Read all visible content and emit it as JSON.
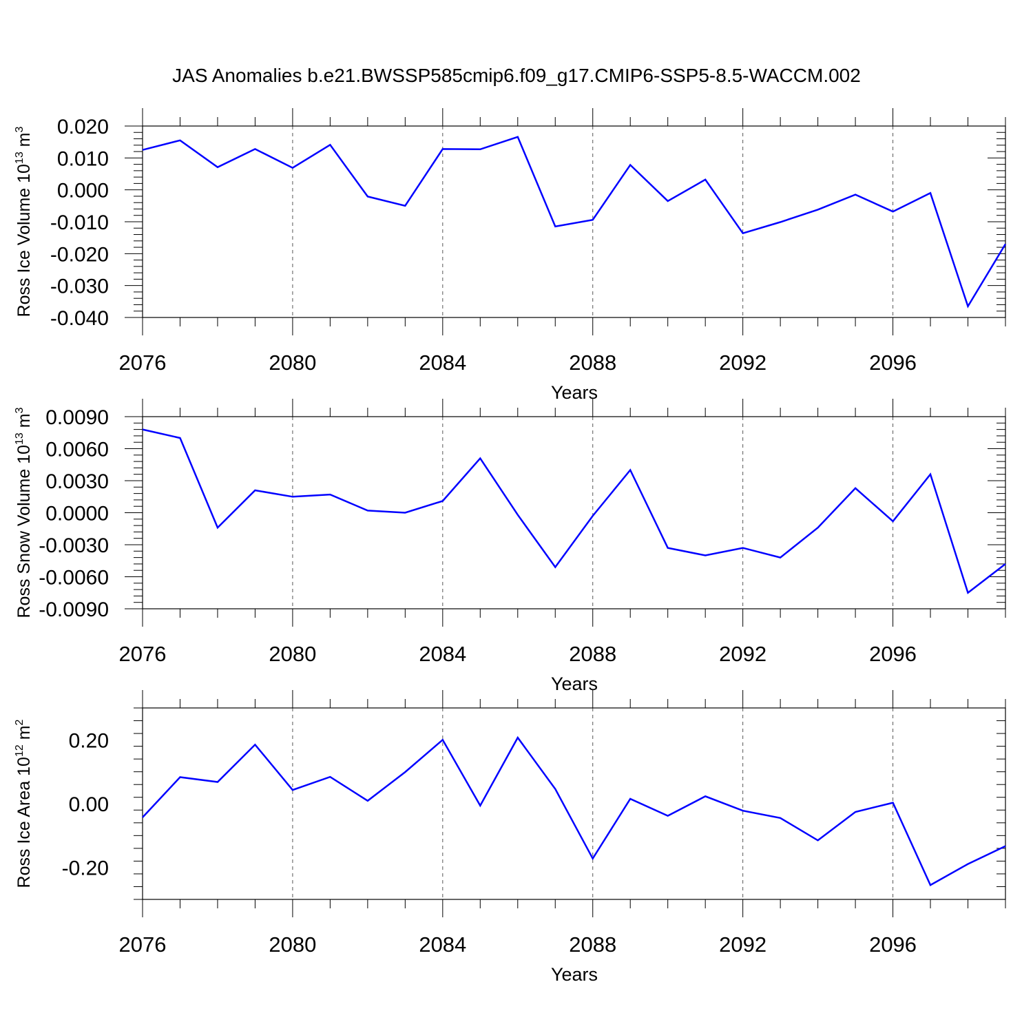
{
  "title": "JAS Anomalies b.e21.BWSSP585cmip6.f09_g17.CMIP6-SSP5-8.5-WACCM.002",
  "colors": {
    "line": "#0000ff",
    "axis": "#000000",
    "grid": "#555555"
  },
  "chart_data": [
    {
      "type": "line",
      "id": "ice-volume",
      "ylabel_main": "Ross Ice Volume 10",
      "ylabel_exp": "13",
      "ylabel_unit": " m",
      "ylabel_unit_exp": "3",
      "xlabel": "Years",
      "xlim": [
        2076,
        2099
      ],
      "ylim": [
        -0.04,
        0.02
      ],
      "yticks": [
        0.02,
        0.01,
        0.0,
        -0.01,
        -0.02,
        -0.03,
        -0.04
      ],
      "ytick_labels": [
        "0.020",
        "0.010",
        "0.000",
        "-0.010",
        "-0.020",
        "-0.030",
        "-0.040"
      ],
      "xticks": [
        2076,
        2080,
        2084,
        2088,
        2092,
        2096
      ],
      "xtick_labels": [
        "2076",
        "2080",
        "2084",
        "2088",
        "2092",
        "2096"
      ],
      "grid": "vertical dashed at major x ticks",
      "series": [
        {
          "name": "Ross Ice Volume",
          "x": [
            2076,
            2077,
            2078,
            2079,
            2080,
            2081,
            2082,
            2083,
            2084,
            2085,
            2086,
            2087,
            2088,
            2089,
            2090,
            2091,
            2092,
            2093,
            2094,
            2095,
            2096,
            2097,
            2098,
            2099
          ],
          "values": [
            0.0125,
            0.0155,
            0.0071,
            0.0128,
            0.0069,
            0.0141,
            -0.0021,
            -0.005,
            0.0128,
            0.0127,
            0.0166,
            -0.0115,
            -0.0094,
            0.0078,
            -0.0035,
            0.0032,
            -0.0136,
            -0.0101,
            -0.0062,
            -0.0015,
            -0.0068,
            -0.001,
            -0.0365,
            -0.017
          ]
        }
      ]
    },
    {
      "type": "line",
      "id": "snow-volume",
      "ylabel_main": "Ross Snow Volume 10",
      "ylabel_exp": "13",
      "ylabel_unit": " m",
      "ylabel_unit_exp": "3",
      "xlabel": "Years",
      "xlim": [
        2076,
        2099
      ],
      "ylim": [
        -0.009,
        0.009
      ],
      "yticks": [
        0.009,
        0.006,
        0.003,
        0.0,
        -0.003,
        -0.006,
        -0.009
      ],
      "ytick_labels": [
        "0.0090",
        "0.0060",
        "0.0030",
        "0.0000",
        "-0.0030",
        "-0.0060",
        "-0.0090"
      ],
      "xticks": [
        2076,
        2080,
        2084,
        2088,
        2092,
        2096
      ],
      "xtick_labels": [
        "2076",
        "2080",
        "2084",
        "2088",
        "2092",
        "2096"
      ],
      "grid": "vertical dashed at major x ticks",
      "series": [
        {
          "name": "Ross Snow Volume",
          "x": [
            2076,
            2077,
            2078,
            2079,
            2080,
            2081,
            2082,
            2083,
            2084,
            2085,
            2086,
            2087,
            2088,
            2089,
            2090,
            2091,
            2092,
            2093,
            2094,
            2095,
            2096,
            2097,
            2098,
            2099
          ],
          "values": [
            0.0078,
            0.007,
            -0.0014,
            0.0021,
            0.0015,
            0.0017,
            0.0002,
            0.0,
            0.0011,
            0.0051,
            -0.0002,
            -0.0051,
            -0.0003,
            0.004,
            -0.0033,
            -0.004,
            -0.0033,
            -0.0042,
            -0.0014,
            0.0023,
            -0.0008,
            0.0036,
            -0.0075,
            -0.0048
          ]
        }
      ]
    },
    {
      "type": "line",
      "id": "ice-area",
      "ylabel_main": "Ross Ice Area 10",
      "ylabel_exp": "12",
      "ylabel_unit": " m",
      "ylabel_unit_exp": "2",
      "xlabel": "Years",
      "xlim": [
        2076,
        2099
      ],
      "ylim": [
        -0.3,
        0.3
      ],
      "yticks": [
        0.2,
        0.0,
        -0.2
      ],
      "ytick_labels": [
        "0.20",
        "0.00",
        "-0.20"
      ],
      "xticks": [
        2076,
        2080,
        2084,
        2088,
        2092,
        2096
      ],
      "xtick_labels": [
        "2076",
        "2080",
        "2084",
        "2088",
        "2092",
        "2096"
      ],
      "grid": "vertical dashed at major x ticks",
      "series": [
        {
          "name": "Ross Ice Area",
          "x": [
            2076,
            2077,
            2078,
            2079,
            2080,
            2081,
            2082,
            2083,
            2084,
            2085,
            2086,
            2087,
            2088,
            2089,
            2090,
            2091,
            2092,
            2093,
            2094,
            2095,
            2096,
            2097,
            2098,
            2099
          ],
          "values": [
            -0.043,
            0.083,
            0.068,
            0.185,
            0.043,
            0.084,
            0.009,
            0.099,
            0.2,
            -0.006,
            0.207,
            0.046,
            -0.172,
            0.015,
            -0.038,
            0.023,
            -0.022,
            -0.045,
            -0.115,
            -0.026,
            0.003,
            -0.255,
            -0.189,
            -0.133
          ]
        }
      ]
    }
  ]
}
